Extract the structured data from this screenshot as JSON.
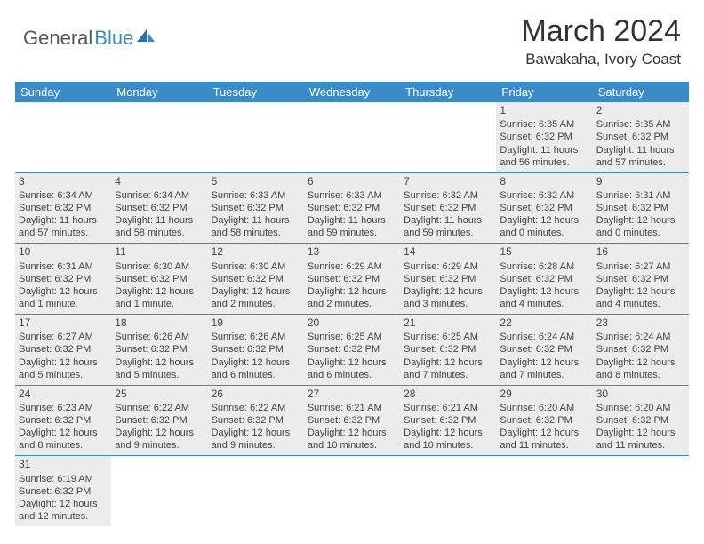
{
  "logo": {
    "text1": "General",
    "text2": "Blue"
  },
  "header": {
    "month": "March 2024",
    "location": "Bawakaha, Ivory Coast"
  },
  "colors": {
    "accent": "#3b8bc8",
    "cell_fill": "#ececec",
    "text": "#444444",
    "background": "#ffffff"
  },
  "typography": {
    "month_fontsize": 34,
    "location_fontsize": 17,
    "header_fontsize": 13,
    "cell_fontsize": 11
  },
  "calendar": {
    "day_headers": [
      "Sunday",
      "Monday",
      "Tuesday",
      "Wednesday",
      "Thursday",
      "Friday",
      "Saturday"
    ],
    "weeks": [
      [
        null,
        null,
        null,
        null,
        null,
        {
          "n": "1",
          "sr": "Sunrise: 6:35 AM",
          "ss": "Sunset: 6:32 PM",
          "d1": "Daylight: 11 hours",
          "d2": "and 56 minutes."
        },
        {
          "n": "2",
          "sr": "Sunrise: 6:35 AM",
          "ss": "Sunset: 6:32 PM",
          "d1": "Daylight: 11 hours",
          "d2": "and 57 minutes."
        }
      ],
      [
        {
          "n": "3",
          "sr": "Sunrise: 6:34 AM",
          "ss": "Sunset: 6:32 PM",
          "d1": "Daylight: 11 hours",
          "d2": "and 57 minutes."
        },
        {
          "n": "4",
          "sr": "Sunrise: 6:34 AM",
          "ss": "Sunset: 6:32 PM",
          "d1": "Daylight: 11 hours",
          "d2": "and 58 minutes."
        },
        {
          "n": "5",
          "sr": "Sunrise: 6:33 AM",
          "ss": "Sunset: 6:32 PM",
          "d1": "Daylight: 11 hours",
          "d2": "and 58 minutes."
        },
        {
          "n": "6",
          "sr": "Sunrise: 6:33 AM",
          "ss": "Sunset: 6:32 PM",
          "d1": "Daylight: 11 hours",
          "d2": "and 59 minutes."
        },
        {
          "n": "7",
          "sr": "Sunrise: 6:32 AM",
          "ss": "Sunset: 6:32 PM",
          "d1": "Daylight: 11 hours",
          "d2": "and 59 minutes."
        },
        {
          "n": "8",
          "sr": "Sunrise: 6:32 AM",
          "ss": "Sunset: 6:32 PM",
          "d1": "Daylight: 12 hours",
          "d2": "and 0 minutes."
        },
        {
          "n": "9",
          "sr": "Sunrise: 6:31 AM",
          "ss": "Sunset: 6:32 PM",
          "d1": "Daylight: 12 hours",
          "d2": "and 0 minutes."
        }
      ],
      [
        {
          "n": "10",
          "sr": "Sunrise: 6:31 AM",
          "ss": "Sunset: 6:32 PM",
          "d1": "Daylight: 12 hours",
          "d2": "and 1 minute."
        },
        {
          "n": "11",
          "sr": "Sunrise: 6:30 AM",
          "ss": "Sunset: 6:32 PM",
          "d1": "Daylight: 12 hours",
          "d2": "and 1 minute."
        },
        {
          "n": "12",
          "sr": "Sunrise: 6:30 AM",
          "ss": "Sunset: 6:32 PM",
          "d1": "Daylight: 12 hours",
          "d2": "and 2 minutes."
        },
        {
          "n": "13",
          "sr": "Sunrise: 6:29 AM",
          "ss": "Sunset: 6:32 PM",
          "d1": "Daylight: 12 hours",
          "d2": "and 2 minutes."
        },
        {
          "n": "14",
          "sr": "Sunrise: 6:29 AM",
          "ss": "Sunset: 6:32 PM",
          "d1": "Daylight: 12 hours",
          "d2": "and 3 minutes."
        },
        {
          "n": "15",
          "sr": "Sunrise: 6:28 AM",
          "ss": "Sunset: 6:32 PM",
          "d1": "Daylight: 12 hours",
          "d2": "and 4 minutes."
        },
        {
          "n": "16",
          "sr": "Sunrise: 6:27 AM",
          "ss": "Sunset: 6:32 PM",
          "d1": "Daylight: 12 hours",
          "d2": "and 4 minutes."
        }
      ],
      [
        {
          "n": "17",
          "sr": "Sunrise: 6:27 AM",
          "ss": "Sunset: 6:32 PM",
          "d1": "Daylight: 12 hours",
          "d2": "and 5 minutes."
        },
        {
          "n": "18",
          "sr": "Sunrise: 6:26 AM",
          "ss": "Sunset: 6:32 PM",
          "d1": "Daylight: 12 hours",
          "d2": "and 5 minutes."
        },
        {
          "n": "19",
          "sr": "Sunrise: 6:26 AM",
          "ss": "Sunset: 6:32 PM",
          "d1": "Daylight: 12 hours",
          "d2": "and 6 minutes."
        },
        {
          "n": "20",
          "sr": "Sunrise: 6:25 AM",
          "ss": "Sunset: 6:32 PM",
          "d1": "Daylight: 12 hours",
          "d2": "and 6 minutes."
        },
        {
          "n": "21",
          "sr": "Sunrise: 6:25 AM",
          "ss": "Sunset: 6:32 PM",
          "d1": "Daylight: 12 hours",
          "d2": "and 7 minutes."
        },
        {
          "n": "22",
          "sr": "Sunrise: 6:24 AM",
          "ss": "Sunset: 6:32 PM",
          "d1": "Daylight: 12 hours",
          "d2": "and 7 minutes."
        },
        {
          "n": "23",
          "sr": "Sunrise: 6:24 AM",
          "ss": "Sunset: 6:32 PM",
          "d1": "Daylight: 12 hours",
          "d2": "and 8 minutes."
        }
      ],
      [
        {
          "n": "24",
          "sr": "Sunrise: 6:23 AM",
          "ss": "Sunset: 6:32 PM",
          "d1": "Daylight: 12 hours",
          "d2": "and 8 minutes."
        },
        {
          "n": "25",
          "sr": "Sunrise: 6:22 AM",
          "ss": "Sunset: 6:32 PM",
          "d1": "Daylight: 12 hours",
          "d2": "and 9 minutes."
        },
        {
          "n": "26",
          "sr": "Sunrise: 6:22 AM",
          "ss": "Sunset: 6:32 PM",
          "d1": "Daylight: 12 hours",
          "d2": "and 9 minutes."
        },
        {
          "n": "27",
          "sr": "Sunrise: 6:21 AM",
          "ss": "Sunset: 6:32 PM",
          "d1": "Daylight: 12 hours",
          "d2": "and 10 minutes."
        },
        {
          "n": "28",
          "sr": "Sunrise: 6:21 AM",
          "ss": "Sunset: 6:32 PM",
          "d1": "Daylight: 12 hours",
          "d2": "and 10 minutes."
        },
        {
          "n": "29",
          "sr": "Sunrise: 6:20 AM",
          "ss": "Sunset: 6:32 PM",
          "d1": "Daylight: 12 hours",
          "d2": "and 11 minutes."
        },
        {
          "n": "30",
          "sr": "Sunrise: 6:20 AM",
          "ss": "Sunset: 6:32 PM",
          "d1": "Daylight: 12 hours",
          "d2": "and 11 minutes."
        }
      ],
      [
        {
          "n": "31",
          "sr": "Sunrise: 6:19 AM",
          "ss": "Sunset: 6:32 PM",
          "d1": "Daylight: 12 hours",
          "d2": "and 12 minutes."
        },
        null,
        null,
        null,
        null,
        null,
        null
      ]
    ]
  }
}
